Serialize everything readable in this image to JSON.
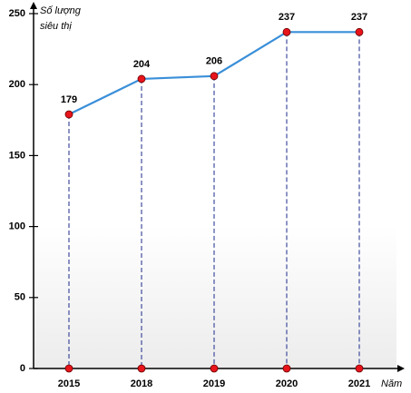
{
  "chart_data": {
    "type": "line",
    "ylabel": [
      "Số lượng",
      "siêu thị"
    ],
    "xlabel": "Năm",
    "categories": [
      "2015",
      "2018",
      "2019",
      "2020",
      "2021"
    ],
    "values": [
      179,
      204,
      206,
      237,
      237
    ],
    "color": "#3a8fd9",
    "marker_color": "#e8141b",
    "ylim": [
      0,
      250
    ],
    "yticks": [
      0,
      50,
      100,
      150,
      200,
      250
    ]
  }
}
